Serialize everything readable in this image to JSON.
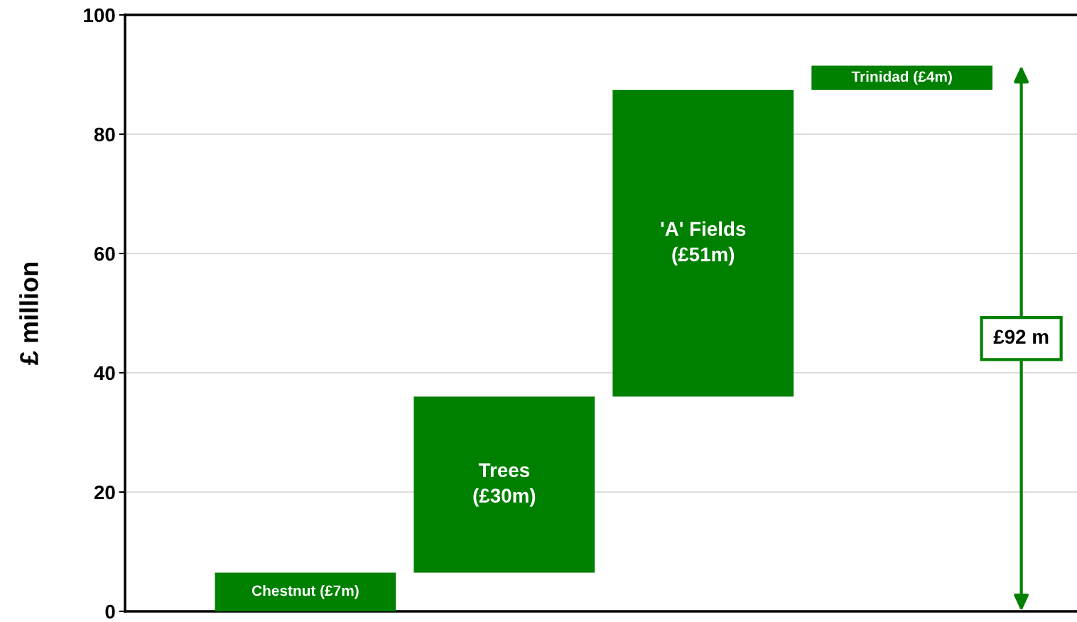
{
  "chart_data": {
    "type": "bar",
    "ylabel": "£ million",
    "categories": [
      null,
      null,
      null,
      null
    ],
    "values": [
      6.5,
      29.5,
      51.4,
      4.1
    ],
    "base": [
      0,
      6.5,
      36,
      87.4
    ],
    "color": "#008000",
    "value_labels": [
      "Chestnut (£7m)",
      "Trees\n(£30m)",
      "'A' Fields\n(£51m)",
      "Trinidad (£4m)"
    ],
    "annotations": [
      "£92 m"
    ],
    "ylim": [
      0,
      100
    ],
    "yticks": [
      0,
      20,
      40,
      60,
      80,
      100
    ],
    "grid": "y",
    "legend": false
  }
}
